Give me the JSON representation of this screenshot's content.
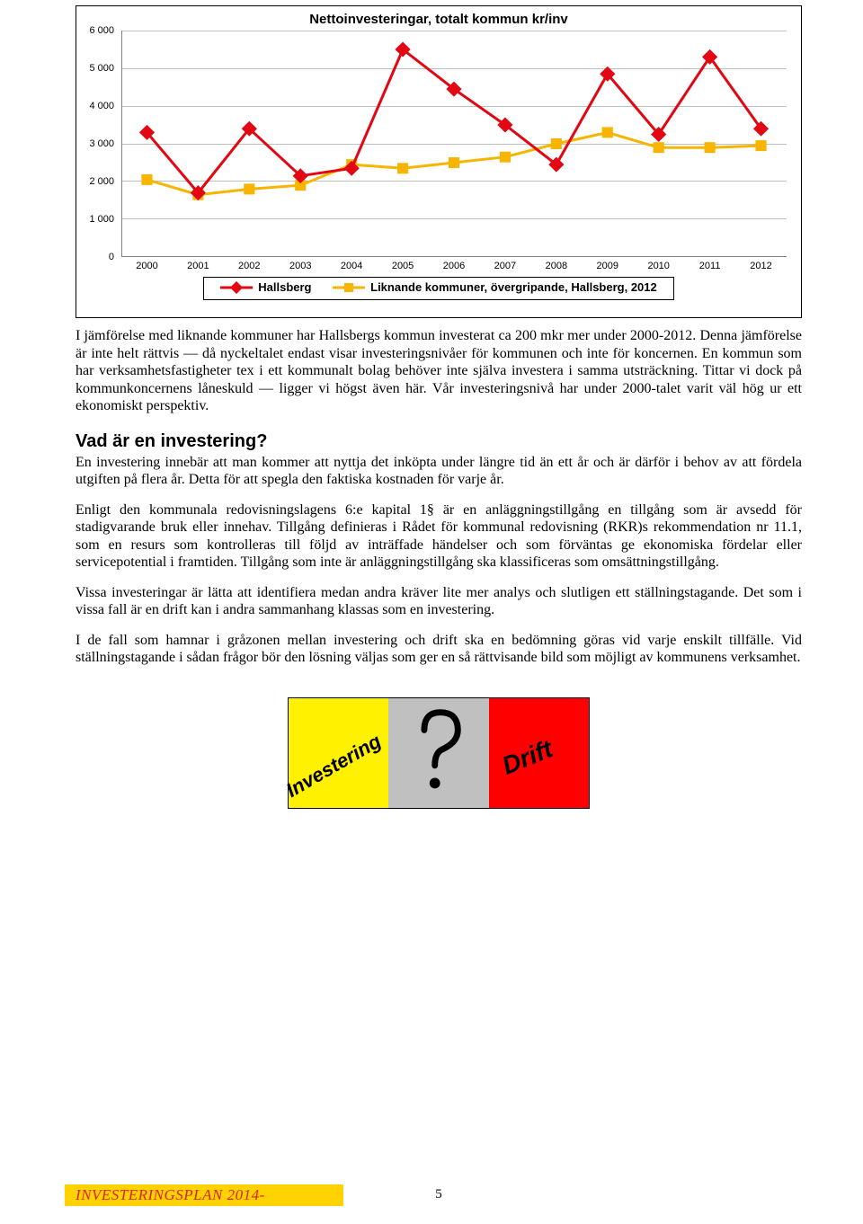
{
  "chart": {
    "title": "Nettoinvesteringar, totalt kommun kr/inv",
    "ylim": [
      0,
      6000
    ],
    "ytick_step": 1000,
    "yticks": [
      "0",
      "1 000",
      "2 000",
      "3 000",
      "4 000",
      "5 000",
      "6 000"
    ],
    "categories": [
      "2000",
      "2001",
      "2002",
      "2003",
      "2004",
      "2005",
      "2006",
      "2007",
      "2008",
      "2009",
      "2010",
      "2011",
      "2012"
    ],
    "series": [
      {
        "name": "Hallsberg",
        "color": "#e30613",
        "marker": "diamond",
        "line_width": 3,
        "values": [
          3300,
          1700,
          3400,
          2150,
          2350,
          5500,
          4450,
          3500,
          2450,
          4850,
          3250,
          5300,
          3400
        ]
      },
      {
        "name": "Liknande kommuner, övergripande, Hallsberg, 2012",
        "color": "#f7b500",
        "marker": "square",
        "line_width": 3,
        "values": [
          2050,
          1650,
          1800,
          1900,
          2450,
          2350,
          2500,
          2650,
          3000,
          3300,
          2900,
          2900,
          2950
        ]
      }
    ],
    "grid_color": "#c0c0c0",
    "axis_color": "#808080",
    "tick_font_size": 11,
    "title_font_size": 15
  },
  "text": {
    "intro": "I jämförelse med liknande kommuner har Hallsbergs kommun investerat ca 200 mkr mer under 2000-2012. Denna jämförelse är inte helt rättvis — då  nyckeltalet endast visar investeringsnivåer för kommunen och inte för koncernen. En kommun som har verksamhetsfastigheter tex i ett kommunalt bolag behöver inte själva investera i samma utsträckning. Tittar vi dock på kommunkoncernens låneskuld — ligger vi högst även här. Vår investeringsnivå har under 2000-talet varit väl hög ur ett ekonomiskt perspektiv.",
    "h2": "Vad är en investering?",
    "p1": "En investering innebär att man kommer att nyttja det inköpta under längre tid än ett år och är därför i behov av att fördela utgiften på flera år. Detta för att spegla den faktiska kostnaden för varje år.",
    "p2": "Enligt den kommunala redovisningslagens 6:e kapital 1§ är en anläggningstillgång en tillgång som är avsedd för stadigvarande bruk eller innehav. Tillgång definieras i Rådet för kommunal redovisning (RKR)s rekommendation nr 11.1, som en resurs som kontrolleras till följd av inträffade händelser och som förväntas ge ekonomiska fördelar eller servicepotential i framtiden. Tillgång som inte är anläggningstillgång ska klassificeras som omsättningstillgång.",
    "p3": "Vissa investeringar är lätta att identifiera medan andra kräver lite mer analys och slutligen ett ställningstagande. Det som i vissa fall är en drift kan i andra sammanhang klassas som en investering.",
    "p4": "I de fall som hamnar i gråzonen mellan investering och drift ska en bedömning göras vid varje enskilt tillfälle. Vid ställningstagande i sådan frågor bör den lösning väljas som ger en så rättvisande bild som möjligt av kommunens verksamhet."
  },
  "infographic": {
    "panels": [
      {
        "color": "#fff100",
        "label": "Investering",
        "text_color": "#000000"
      },
      {
        "color": "#c0c0c0",
        "label": "?",
        "text_color": "#000000"
      },
      {
        "color": "#ff0000",
        "label": "Drift",
        "text_color": "#000000"
      }
    ]
  },
  "footer": {
    "band_text": "INVESTERINGSPLAN 2014-",
    "band_bg": "#ffd200",
    "band_color": "#dd2222",
    "page_number": "5"
  }
}
